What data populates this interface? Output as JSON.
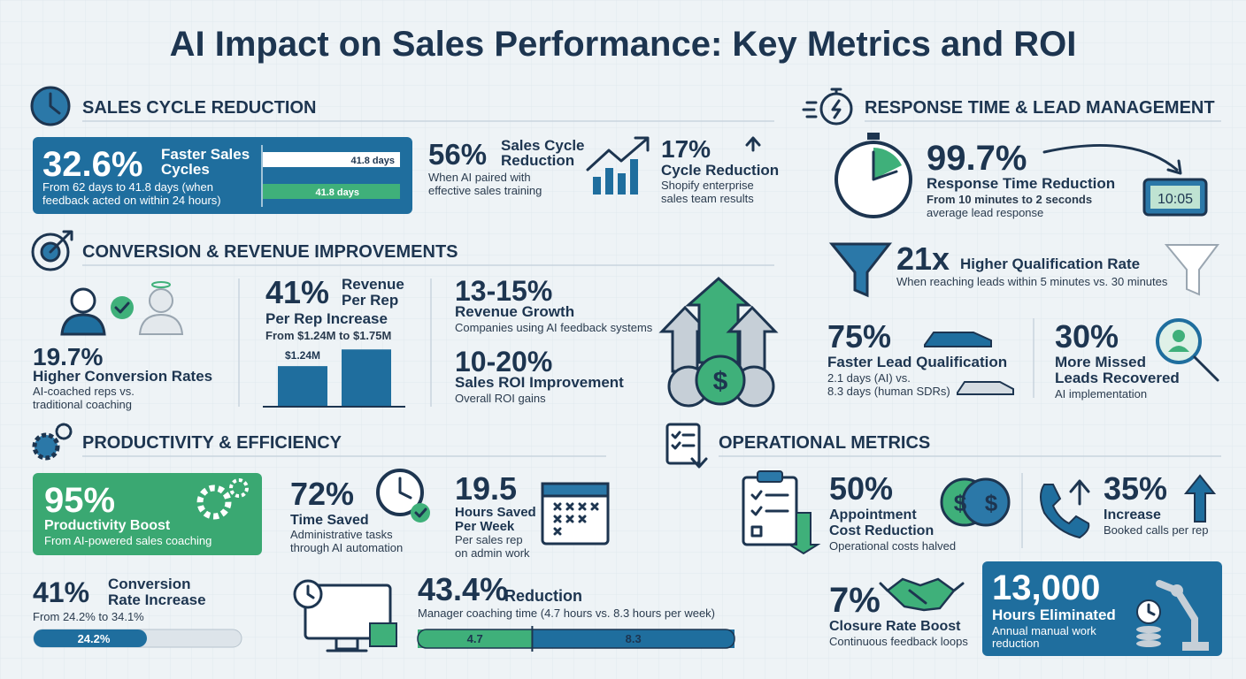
{
  "title": "AI Impact on Sales Performance: Key Metrics and ROI",
  "sales_cycle": {
    "heading": "SALES CYCLE REDUCTION",
    "faster": {
      "value": "32.6%",
      "label": [
        "Faster Sales",
        "Cycles"
      ],
      "note": [
        "From 62 days to 41.8 days (when",
        "feedback acted on within 24 hours)"
      ],
      "bar_labels": [
        "41.8 days",
        "41.8 days"
      ]
    },
    "training": {
      "value": "56%",
      "label": [
        "Sales Cycle",
        "Reduction"
      ],
      "note": [
        "When AI paired with",
        "effective sales training"
      ]
    },
    "shopify": {
      "value": "17%",
      "label": [
        "Cycle Reduction"
      ],
      "note": [
        "Shopify enterprise",
        "sales team results"
      ]
    }
  },
  "conversion": {
    "heading": "CONVERSION & REVENUE IMPROVEMENTS",
    "rates": {
      "value": "19.7%",
      "label": [
        "Higher Conversion Rates"
      ],
      "note": [
        "AI-coached reps vs.",
        "traditional coaching"
      ]
    },
    "revenue": {
      "value": "41%",
      "label": [
        "Revenue",
        "Per Rep"
      ],
      "sublabel": "Per Rep Increase",
      "note": [
        "From $1.24M to $1.75M"
      ],
      "bars": [
        1.24,
        1.75
      ],
      "bar_labels": [
        "$1.24M"
      ]
    },
    "growth": {
      "value": "13-15%",
      "label": [
        "Revenue Growth"
      ],
      "note": [
        "Companies using AI feedback systems"
      ]
    },
    "roi": {
      "value": "10-20%",
      "label": [
        "Sales ROI Improvement"
      ],
      "note": [
        "Overall ROI gains"
      ]
    }
  },
  "response": {
    "heading": "RESPONSE TIME & LEAD MANAGEMENT",
    "time": {
      "value": "99.7%",
      "label": [
        "Response Time Reduction"
      ],
      "note": [
        "From 10 minutes to 2 seconds",
        "average lead response"
      ],
      "clock": "10:05"
    },
    "qualification": {
      "value": "21x",
      "label": [
        "Higher Qualification Rate"
      ],
      "note": [
        "When reaching leads within 5 minutes vs. 30 minutes"
      ]
    },
    "lead": {
      "value": "75%",
      "label": [
        "Faster Lead Qualification"
      ],
      "note": [
        "2.1 days (AI) vs.",
        "8.3 days (human SDRs)"
      ]
    },
    "missed": {
      "value": "30%",
      "label": [
        "More Missed",
        "Leads Recovered"
      ],
      "note": [
        "AI implementation"
      ]
    }
  },
  "productivity": {
    "heading": "PRODUCTIVITY & EFFICIENCY",
    "boost": {
      "value": "95%",
      "label": [
        "Productivity Boost"
      ],
      "note": [
        "From AI-powered sales coaching"
      ]
    },
    "time": {
      "value": "72%",
      "label": [
        "Time Saved"
      ],
      "note": [
        "Administrative tasks",
        "through AI automation"
      ]
    },
    "hours": {
      "value": "19.5",
      "label": [
        "Hours Saved",
        "Per Week"
      ],
      "note": [
        "Per sales rep",
        "on admin work"
      ]
    },
    "conversion": {
      "value": "41%",
      "label": [
        "Conversion",
        "Rate Increase"
      ],
      "note": [
        "From 24.2% to 34.1%"
      ],
      "bar_label": "24.2%"
    },
    "coaching": {
      "value": "43.4%",
      "label": [
        "Reduction"
      ],
      "note": [
        "Manager coaching time (4.7 hours vs. 8.3 hours per week)"
      ],
      "split": [
        4.7,
        8.3
      ]
    }
  },
  "operational": {
    "heading": "OPERATIONAL METRICS",
    "appointment": {
      "value": "50%",
      "label": [
        "Appointment",
        "Cost Reduction"
      ],
      "note": [
        "Operational costs halved"
      ]
    },
    "calls": {
      "value": "35%",
      "label": [
        "Increase"
      ],
      "note": [
        "Booked calls per rep"
      ]
    },
    "closure": {
      "value": "7%",
      "label": [
        "Closure Rate Boost"
      ],
      "note": [
        "Continuous feedback loops"
      ]
    },
    "hours": {
      "value": "13,000",
      "label": [
        "Hours Eliminated"
      ],
      "note": [
        "Annual manual work",
        "reduction"
      ]
    }
  }
}
